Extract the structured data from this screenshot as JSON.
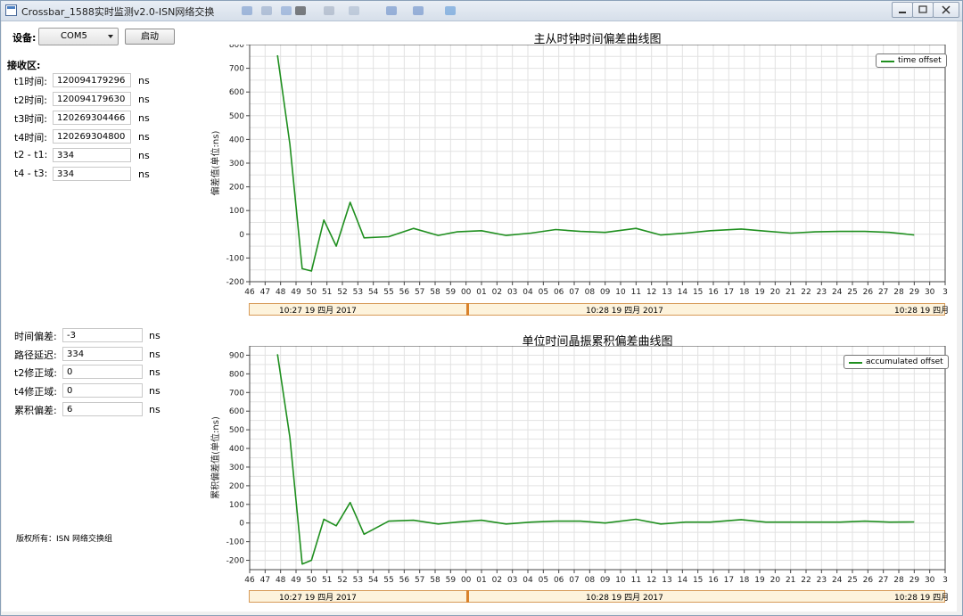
{
  "window": {
    "title": "Crossbar_1588实时监测v2.0-ISN网络交换",
    "controls": [
      "minimize",
      "restore",
      "close"
    ]
  },
  "toolbar": {
    "device_label": "设备:",
    "device_value": "COM5",
    "start_button": "启动"
  },
  "receive": {
    "heading": "接收区:",
    "rows": [
      {
        "label": "t1时间:",
        "value": "120094179296",
        "unit": "ns"
      },
      {
        "label": "t2时间:",
        "value": "120094179630",
        "unit": "ns"
      },
      {
        "label": "t3时间:",
        "value": "120269304466",
        "unit": "ns"
      },
      {
        "label": "t4时间:",
        "value": "120269304800",
        "unit": "ns"
      },
      {
        "label": "t2 - t1:",
        "value": "334",
        "unit": "ns"
      },
      {
        "label": "t4 - t3:",
        "value": "334",
        "unit": "ns"
      }
    ]
  },
  "results": {
    "rows": [
      {
        "label": "时间偏差:",
        "value": "-3",
        "unit": "ns"
      },
      {
        "label": "路径延迟:",
        "value": "334",
        "unit": "ns"
      },
      {
        "label": "t2修正域:",
        "value": "0",
        "unit": "ns"
      },
      {
        "label": "t4修正域:",
        "value": "0",
        "unit": "ns"
      },
      {
        "label": "累积偏差:",
        "value": "6",
        "unit": "ns"
      }
    ]
  },
  "footer": {
    "copyright": "版权所有：ISN 网络交换组"
  },
  "charts": [
    {
      "title": "主从时钟时间偏差曲线图",
      "ylabel": "偏差值(单位:ns)",
      "legend": "time offset",
      "timebar": [
        "10:27 19 四月 2017",
        "10:28 19 四月 2017",
        "10:28 19 四月"
      ]
    },
    {
      "title": "单位时间晶振累积偏差曲线图",
      "ylabel": "累积偏差值(单位:ns)",
      "legend": "accumulated offset",
      "timebar": [
        "10:27 19 四月 2017",
        "10:28 19 四月 2017",
        "10:28 19 四月"
      ]
    }
  ],
  "colors": {
    "series": "#1f8f1f",
    "grid": "#e2e2e2",
    "timebar_bg": "#fdf3dc",
    "timebar_border": "#d79a58"
  },
  "chart_data": [
    {
      "type": "line",
      "title": "主从时钟时间偏差曲线图",
      "ylabel": "偏差值(单位:ns)",
      "xlabel": "",
      "x_ticks": [
        "46",
        "47",
        "48",
        "49",
        "50",
        "51",
        "52",
        "53",
        "54",
        "55",
        "56",
        "57",
        "58",
        "59",
        "00",
        "01",
        "02",
        "03",
        "04",
        "05",
        "06",
        "07",
        "08",
        "09",
        "10",
        "11",
        "12",
        "13",
        "14",
        "15",
        "16",
        "17",
        "18",
        "19",
        "20",
        "21",
        "22",
        "23",
        "24",
        "25",
        "26",
        "27",
        "28",
        "29",
        "30",
        "3"
      ],
      "y_ticks": [
        -200,
        -100,
        0,
        100,
        200,
        300,
        400,
        500,
        600,
        700,
        800
      ],
      "ylim": [
        -200,
        800
      ],
      "legend_position": "top-right",
      "grid": true,
      "series": [
        {
          "name": "time offset",
          "x": [
            47.8,
            48.6,
            49.4,
            50.0,
            50.8,
            51.6,
            52.5,
            53.4,
            55.0,
            56.6,
            58.2,
            59.4,
            61.0,
            62.6,
            64.2,
            65.8,
            67.4,
            69.0,
            71.0,
            72.6,
            74.2,
            75.8,
            77.8,
            79.4,
            81.0,
            82.6,
            84.2,
            85.8,
            87.4,
            89.0
          ],
          "y": [
            755,
            380,
            -145,
            -155,
            60,
            -50,
            135,
            -15,
            -10,
            25,
            -5,
            10,
            15,
            -5,
            5,
            20,
            12,
            8,
            25,
            -3,
            5,
            15,
            22,
            13,
            5,
            10,
            12,
            12,
            8,
            -3
          ]
        }
      ]
    },
    {
      "type": "line",
      "title": "单位时间晶振累积偏差曲线图",
      "ylabel": "累积偏差值(单位:ns)",
      "xlabel": "",
      "x_ticks": [
        "46",
        "47",
        "48",
        "49",
        "50",
        "51",
        "52",
        "53",
        "54",
        "55",
        "56",
        "57",
        "58",
        "59",
        "00",
        "01",
        "02",
        "03",
        "04",
        "05",
        "06",
        "07",
        "08",
        "09",
        "10",
        "11",
        "12",
        "13",
        "14",
        "15",
        "16",
        "17",
        "18",
        "19",
        "20",
        "21",
        "22",
        "23",
        "24",
        "25",
        "26",
        "27",
        "28",
        "29",
        "30",
        "3"
      ],
      "y_ticks": [
        -200,
        -100,
        0,
        100,
        200,
        300,
        400,
        500,
        600,
        700,
        800,
        900
      ],
      "ylim": [
        -250,
        950
      ],
      "legend_position": "top-right",
      "grid": true,
      "series": [
        {
          "name": "accumulated offset",
          "x": [
            47.8,
            48.6,
            49.4,
            50.0,
            50.8,
            51.6,
            52.5,
            53.4,
            55.0,
            56.6,
            58.2,
            59.4,
            61.0,
            62.6,
            64.2,
            65.8,
            67.4,
            69.0,
            71.0,
            72.6,
            74.2,
            75.8,
            77.8,
            79.4,
            81.0,
            82.6,
            84.2,
            85.8,
            87.4,
            89.0
          ],
          "y": [
            905,
            460,
            -220,
            -200,
            20,
            -15,
            110,
            -60,
            10,
            15,
            -5,
            5,
            15,
            -5,
            5,
            10,
            10,
            0,
            20,
            -5,
            5,
            5,
            18,
            5,
            5,
            5,
            5,
            10,
            5,
            6
          ]
        }
      ]
    }
  ]
}
